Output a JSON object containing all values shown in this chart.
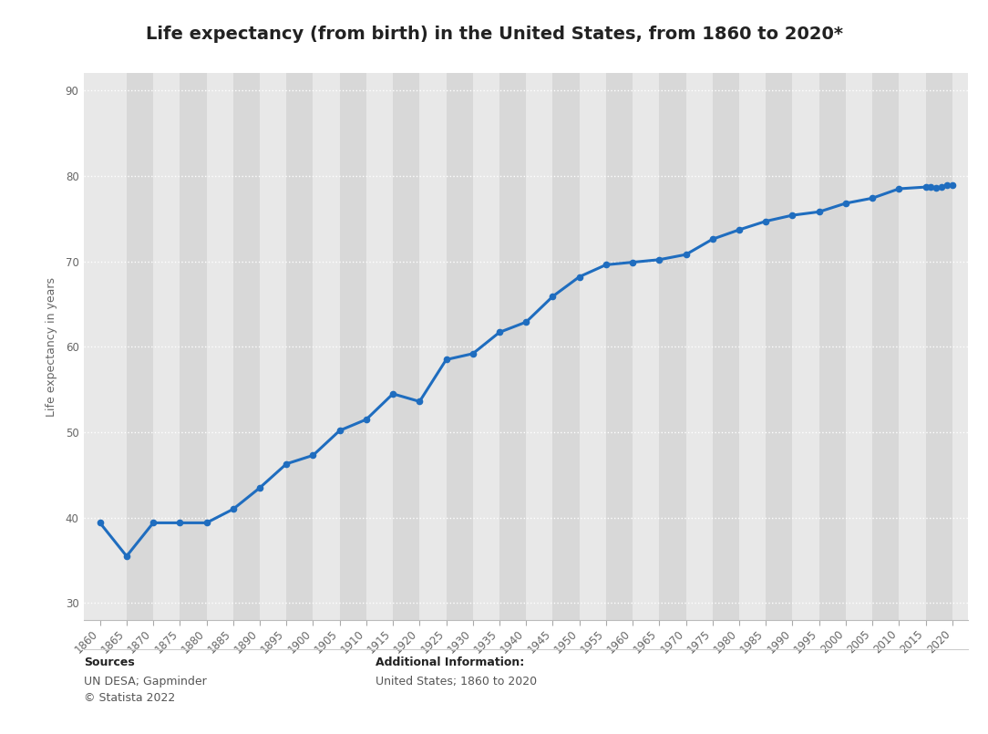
{
  "title": "Life expectancy (from birth) in the United States, from 1860 to 2020*",
  "ylabel": "Life expectancy in years",
  "background_color": "#ffffff",
  "plot_bg_color": "#e8e8e8",
  "column_stripe_color": "#d8d8d8",
  "line_color": "#1f6dbf",
  "marker_color": "#1f6dbf",
  "years": [
    1860,
    1865,
    1870,
    1875,
    1880,
    1885,
    1890,
    1895,
    1900,
    1905,
    1910,
    1915,
    1920,
    1925,
    1930,
    1935,
    1940,
    1945,
    1950,
    1955,
    1960,
    1965,
    1970,
    1975,
    1980,
    1985,
    1990,
    1995,
    2000,
    2005,
    2010,
    2015,
    2016,
    2017,
    2018,
    2019,
    2020
  ],
  "values": [
    39.4,
    35.5,
    39.4,
    39.4,
    39.4,
    41.0,
    43.5,
    46.3,
    47.3,
    50.2,
    51.5,
    54.5,
    53.6,
    58.5,
    59.2,
    61.7,
    62.9,
    65.9,
    68.2,
    69.6,
    69.9,
    70.2,
    70.8,
    72.6,
    73.7,
    74.7,
    75.4,
    75.8,
    76.8,
    77.4,
    78.5,
    78.7,
    78.7,
    78.6,
    78.7,
    78.9,
    78.9
  ],
  "ylim": [
    28,
    92
  ],
  "yticks": [
    30,
    40,
    50,
    60,
    70,
    80,
    90
  ],
  "xlim": [
    1857,
    2023
  ],
  "xticks": [
    1860,
    1865,
    1870,
    1875,
    1880,
    1885,
    1890,
    1895,
    1900,
    1905,
    1910,
    1915,
    1920,
    1925,
    1930,
    1935,
    1940,
    1945,
    1950,
    1955,
    1960,
    1965,
    1970,
    1975,
    1980,
    1985,
    1990,
    1995,
    2000,
    2005,
    2010,
    2015,
    2020
  ],
  "sources_label": "Sources",
  "sources_body": "UN DESA; Gapminder\n© Statista 2022",
  "additional_label": "Additional Information:",
  "additional_body": "United States; 1860 to 2020",
  "title_fontsize": 14,
  "axis_label_fontsize": 9,
  "tick_fontsize": 8.5,
  "footer_fontsize": 9
}
